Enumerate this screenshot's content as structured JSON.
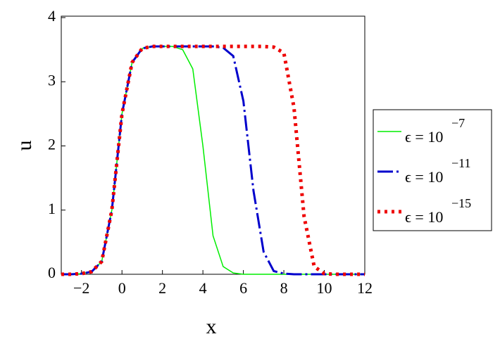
{
  "chart_data": {
    "type": "line",
    "x_label": "x",
    "y_label": "u",
    "x": [
      -3,
      -2.5,
      -2,
      -1.5,
      -1,
      -0.5,
      0,
      0.5,
      1,
      1.5,
      2,
      2.5,
      3,
      3.5,
      4,
      4.5,
      5,
      5.5,
      6,
      6.5,
      7,
      7.5,
      8,
      8.5,
      9,
      9.5,
      10,
      10.5,
      11,
      11.5,
      12
    ],
    "series": [
      {
        "name": "ϵ = 10",
        "exponent": "−7",
        "color": "#00ee00",
        "style": "solid",
        "values": [
          0,
          0,
          0.01,
          0.04,
          0.2,
          1.0,
          2.5,
          3.3,
          3.52,
          3.55,
          3.55,
          3.55,
          3.5,
          3.2,
          2.0,
          0.6,
          0.12,
          0.02,
          0,
          0,
          0,
          0,
          0,
          0,
          0,
          0,
          0,
          0,
          0,
          0,
          0
        ]
      },
      {
        "name": "ϵ = 10",
        "exponent": "−11",
        "color": "#0000cc",
        "style": "dashdot",
        "values": [
          0,
          0,
          0.01,
          0.04,
          0.2,
          1.0,
          2.5,
          3.3,
          3.52,
          3.55,
          3.55,
          3.55,
          3.55,
          3.55,
          3.55,
          3.55,
          3.53,
          3.4,
          2.7,
          1.3,
          0.35,
          0.05,
          0.01,
          0,
          0,
          0,
          0,
          0,
          0,
          0,
          0
        ]
      },
      {
        "name": "ϵ = 10",
        "exponent": "−15",
        "color": "#ee0000",
        "style": "dot",
        "values": [
          0,
          0,
          0.01,
          0.04,
          0.2,
          1.0,
          2.5,
          3.3,
          3.52,
          3.55,
          3.55,
          3.55,
          3.55,
          3.55,
          3.55,
          3.55,
          3.55,
          3.55,
          3.55,
          3.55,
          3.55,
          3.54,
          3.45,
          2.6,
          0.9,
          0.12,
          0.01,
          0,
          0,
          0,
          0
        ]
      }
    ],
    "xlim": [
      -3,
      12
    ],
    "ylim": [
      0,
      4
    ],
    "xticks": [
      {
        "value": -2,
        "label": "−2"
      },
      0,
      2,
      4,
      6,
      8,
      10,
      12
    ],
    "yticks": [
      0,
      1,
      2,
      3,
      4
    ],
    "legend": "right"
  }
}
